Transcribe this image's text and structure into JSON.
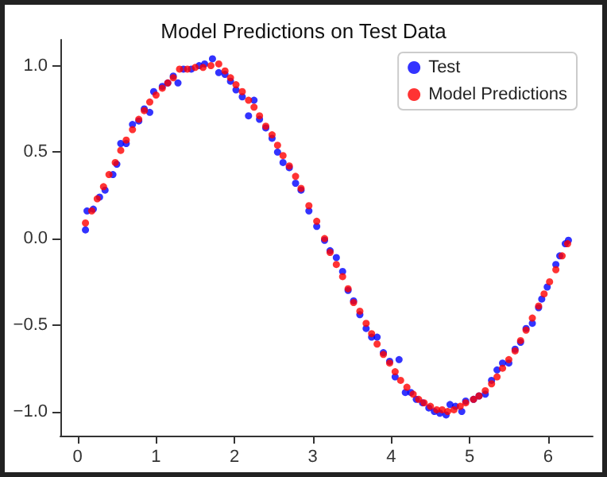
{
  "chart_data": {
    "type": "scatter",
    "title": "Model Predictions on Test Data",
    "legend": "top right",
    "marker": "circle",
    "grid": false,
    "xlim": [
      -0.22,
      6.57
    ],
    "ylim": [
      -1.14,
      1.15
    ],
    "xticks": [
      0,
      1,
      2,
      3,
      4,
      5,
      6
    ],
    "yticks": [
      {
        "value": -1,
        "label": "−1.0"
      },
      {
        "value": -0.5,
        "label": "−0.5"
      },
      {
        "value": 0,
        "label": "0.0"
      },
      {
        "value": 0.5,
        "label": "0.5"
      },
      {
        "value": 1,
        "label": "1.0"
      }
    ],
    "series": [
      {
        "name": "Test",
        "color": "#0000ff",
        "x": [
          0.1,
          0.12,
          0.2,
          0.28,
          0.35,
          0.45,
          0.5,
          0.55,
          0.62,
          0.7,
          0.78,
          0.85,
          0.92,
          0.97,
          1.08,
          1.15,
          1.22,
          1.28,
          1.35,
          1.45,
          1.55,
          1.62,
          1.72,
          1.8,
          1.88,
          1.95,
          2.02,
          2.1,
          2.18,
          2.25,
          2.32,
          2.4,
          2.48,
          2.55,
          2.62,
          2.7,
          2.78,
          2.85,
          2.95,
          3.05,
          3.15,
          3.22,
          3.3,
          3.38,
          3.45,
          3.52,
          3.6,
          3.68,
          3.75,
          3.82,
          3.9,
          3.98,
          4.05,
          4.1,
          4.18,
          4.25,
          4.32,
          4.4,
          4.48,
          4.55,
          4.62,
          4.7,
          4.75,
          4.82,
          4.9,
          4.95,
          5.05,
          5.12,
          5.2,
          5.28,
          5.35,
          5.42,
          5.5,
          5.58,
          5.65,
          5.72,
          5.8,
          5.88,
          5.92,
          5.99,
          6.1,
          6.15,
          6.22,
          6.26
        ],
        "values": [
          0.05,
          0.16,
          0.17,
          0.24,
          0.28,
          0.37,
          0.43,
          0.55,
          0.55,
          0.66,
          0.68,
          0.75,
          0.73,
          0.85,
          0.88,
          0.9,
          0.94,
          0.9,
          0.98,
          0.98,
          1.0,
          1.01,
          1.04,
          0.96,
          0.95,
          0.91,
          0.86,
          0.82,
          0.71,
          0.8,
          0.69,
          0.64,
          0.58,
          0.5,
          0.44,
          0.41,
          0.32,
          0.28,
          0.16,
          0.07,
          -0.01,
          -0.07,
          -0.11,
          -0.19,
          -0.3,
          -0.36,
          -0.44,
          -0.52,
          -0.57,
          -0.57,
          -0.66,
          -0.71,
          -0.8,
          -0.7,
          -0.89,
          -0.89,
          -0.93,
          -0.95,
          -0.98,
          -1.0,
          -1.01,
          -1.02,
          -0.96,
          -0.97,
          -1.0,
          -0.94,
          -0.93,
          -0.91,
          -0.9,
          -0.82,
          -0.76,
          -0.72,
          -0.72,
          -0.64,
          -0.6,
          -0.52,
          -0.49,
          -0.4,
          -0.35,
          -0.28,
          -0.15,
          -0.1,
          -0.03,
          -0.01
        ]
      },
      {
        "name": "Model Predictions",
        "color": "#ff0000",
        "x": [
          0.1,
          0.18,
          0.25,
          0.33,
          0.4,
          0.48,
          0.55,
          0.62,
          0.7,
          0.78,
          0.85,
          0.92,
          1.0,
          1.08,
          1.15,
          1.22,
          1.3,
          1.4,
          1.5,
          1.6,
          1.7,
          1.8,
          1.88,
          1.95,
          2.02,
          2.1,
          2.18,
          2.25,
          2.32,
          2.4,
          2.48,
          2.55,
          2.62,
          2.7,
          2.78,
          2.85,
          2.95,
          3.05,
          3.15,
          3.22,
          3.3,
          3.38,
          3.45,
          3.52,
          3.6,
          3.68,
          3.75,
          3.82,
          3.9,
          3.98,
          4.05,
          4.12,
          4.2,
          4.28,
          4.35,
          4.42,
          4.5,
          4.58,
          4.65,
          4.72,
          4.8,
          4.88,
          4.95,
          5.05,
          5.12,
          5.2,
          5.28,
          5.35,
          5.42,
          5.5,
          5.58,
          5.65,
          5.72,
          5.8,
          5.88,
          5.95,
          6.02,
          6.1,
          6.18,
          6.25
        ],
        "values": [
          0.09,
          0.16,
          0.23,
          0.3,
          0.37,
          0.44,
          0.51,
          0.57,
          0.63,
          0.69,
          0.74,
          0.79,
          0.83,
          0.87,
          0.9,
          0.93,
          0.98,
          0.98,
          0.99,
          0.99,
          1.0,
          1.01,
          0.97,
          0.93,
          0.89,
          0.85,
          0.8,
          0.76,
          0.71,
          0.65,
          0.6,
          0.54,
          0.48,
          0.42,
          0.36,
          0.29,
          0.19,
          0.1,
          0.0,
          -0.08,
          -0.15,
          -0.22,
          -0.29,
          -0.37,
          -0.42,
          -0.49,
          -0.55,
          -0.61,
          -0.67,
          -0.72,
          -0.77,
          -0.82,
          -0.86,
          -0.9,
          -0.93,
          -0.95,
          -0.97,
          -0.99,
          -0.99,
          -1.0,
          -0.99,
          -0.97,
          -0.95,
          -0.93,
          -0.91,
          -0.88,
          -0.84,
          -0.8,
          -0.75,
          -0.7,
          -0.65,
          -0.59,
          -0.53,
          -0.46,
          -0.39,
          -0.32,
          -0.25,
          -0.18,
          -0.1,
          -0.03
        ]
      }
    ]
  }
}
